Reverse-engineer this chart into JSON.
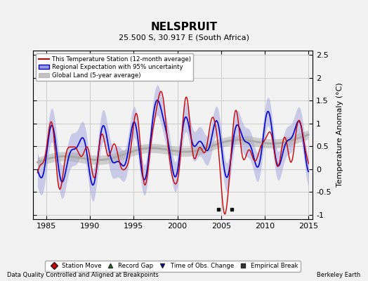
{
  "title": "NELSPRUIT",
  "subtitle": "25.500 S, 30.917 E (South Africa)",
  "ylabel": "Temperature Anomaly (°C)",
  "footer_left": "Data Quality Controlled and Aligned at Breakpoints",
  "footer_right": "Berkeley Earth",
  "xlim": [
    1983.5,
    2015.5
  ],
  "ylim": [
    -1.1,
    2.6
  ],
  "yticks": [
    -1,
    -0.5,
    0,
    0.5,
    1,
    1.5,
    2,
    2.5
  ],
  "xticks": [
    1985,
    1990,
    1995,
    2000,
    2005,
    2010,
    2015
  ],
  "grid_color": "#cccccc",
  "bg_color": "#f2f2f2",
  "red_color": "#cc0000",
  "blue_color": "#0000cc",
  "blue_fill": "#9999dd",
  "gray_color": "#aaaaaa",
  "empirical_breaks": [
    2004.7,
    2006.2
  ],
  "legend_labels": [
    "This Temperature Station (12-month average)",
    "Regional Expectation with 95% uncertainty",
    "Global Land (5-year average)"
  ],
  "marker_legend": [
    [
      "Station Move",
      "#cc0000",
      "D"
    ],
    [
      "Record Gap",
      "#228B22",
      "^"
    ],
    [
      "Time of Obs. Change",
      "#0000cc",
      "v"
    ],
    [
      "Empirical Break",
      "#333333",
      "s"
    ]
  ]
}
